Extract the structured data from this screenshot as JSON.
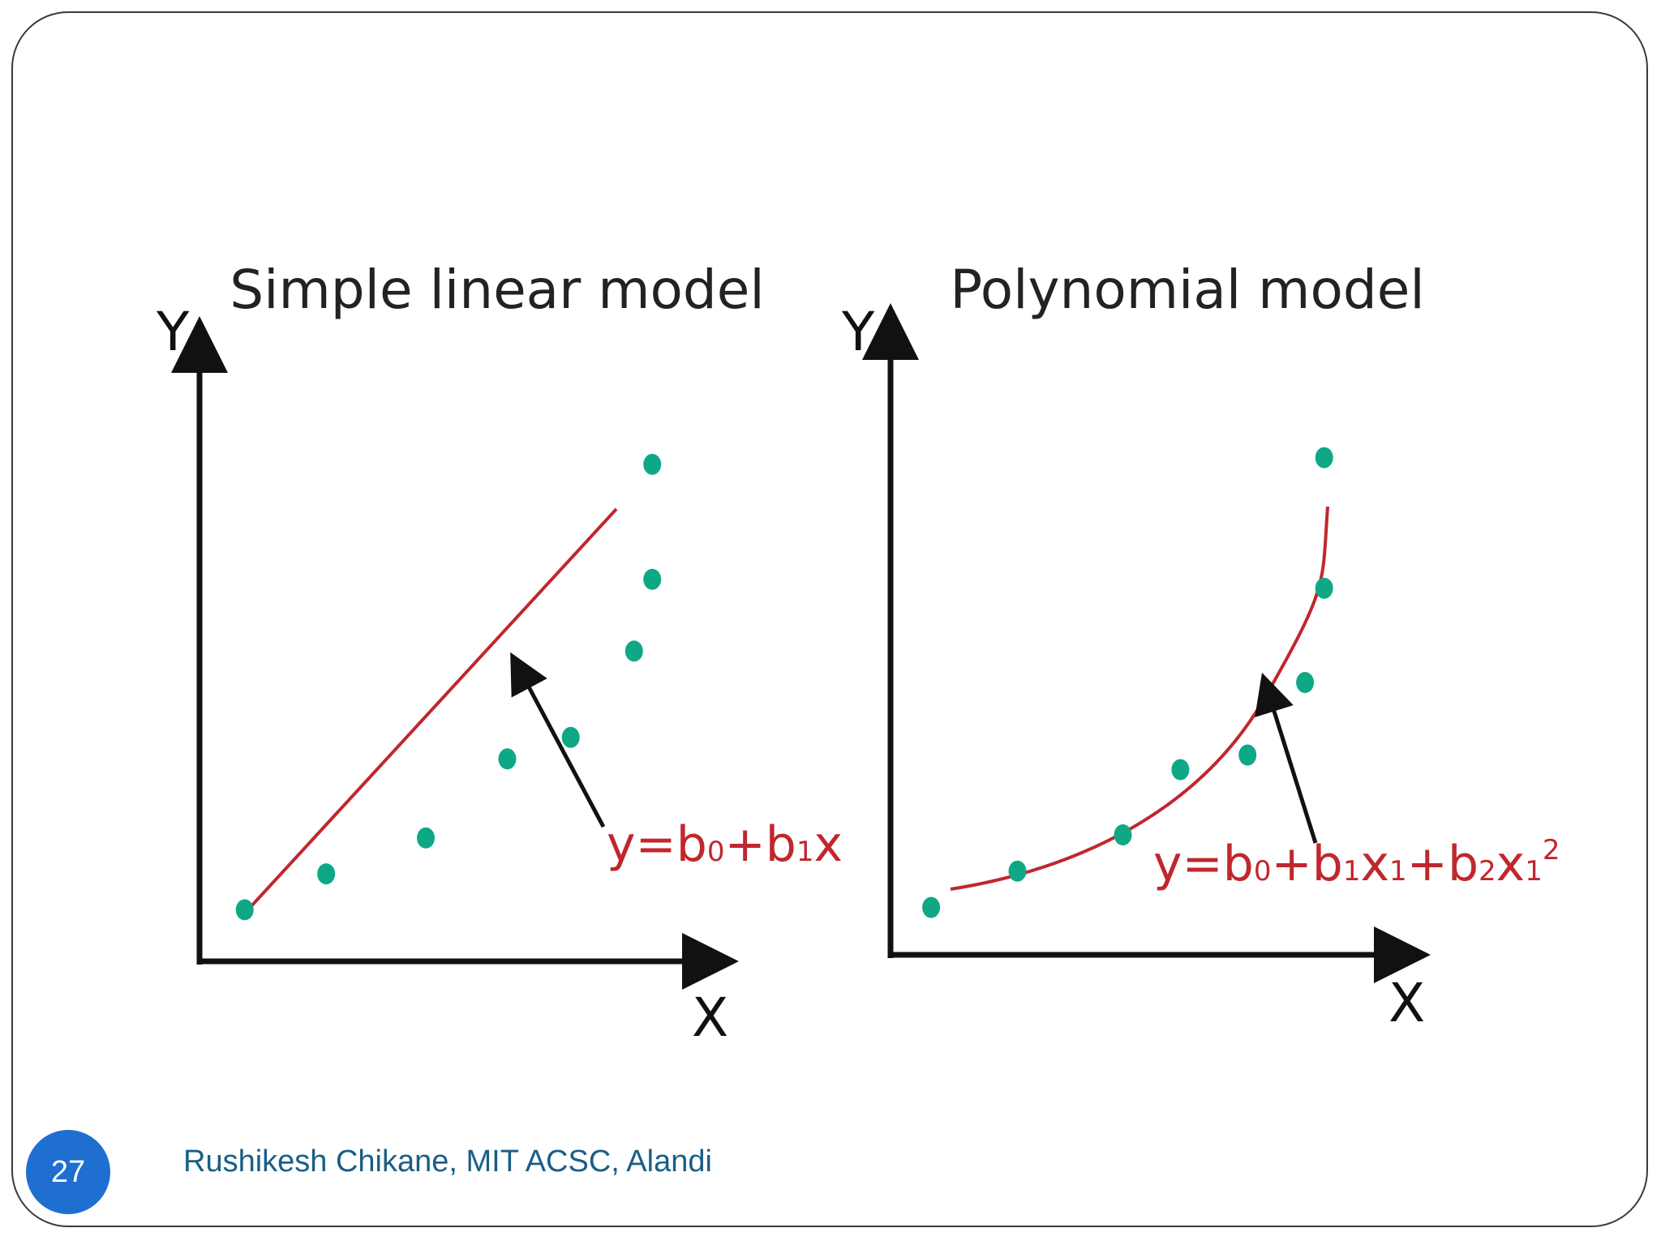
{
  "slide": {
    "page_number": "27",
    "footer": "Rushikesh Chikane, MIT ACSC, Alandi"
  },
  "colors": {
    "points": "#0fa887",
    "fit_line": "#c0272d",
    "axes": "#111111",
    "page_badge": "#1f6fd1",
    "footer_text": "#1a5e86"
  },
  "chart_data": [
    {
      "type": "scatter",
      "title": "Simple linear model",
      "xlabel": "X",
      "ylabel": "Y",
      "x_ticks": false,
      "y_ticks": false,
      "grid": false,
      "points": {
        "x": [
          1.0,
          1.9,
          3.0,
          3.9,
          4.6,
          5.3,
          5.5,
          5.5
        ],
        "y": [
          1.0,
          1.5,
          2.0,
          3.1,
          3.4,
          4.6,
          5.6,
          7.2
        ]
      },
      "fit": {
        "kind": "linear",
        "equation": {
          "y": "y=b",
          "b0": "0",
          "plus": "+b",
          "b1": "1",
          "x": "x"
        }
      }
    },
    {
      "type": "scatter",
      "title": "Polynomial model",
      "xlabel": "X",
      "ylabel": "Y",
      "x_ticks": false,
      "y_ticks": false,
      "grid": false,
      "points": {
        "x": [
          0.5,
          1.4,
          2.5,
          3.1,
          3.8,
          4.4,
          4.6,
          4.6
        ],
        "y": [
          1.0,
          1.5,
          2.0,
          2.9,
          3.1,
          4.1,
          5.4,
          7.2
        ]
      },
      "fit": {
        "kind": "polynomial",
        "equation": {
          "y": "y=b",
          "b0": "0",
          "p1": "+b",
          "b1": "1",
          "x1a": "x",
          "s1": "1",
          "p2": "+b",
          "b2": "2",
          "x1b": "x",
          "s2": "1",
          "sq": "2"
        }
      }
    }
  ]
}
